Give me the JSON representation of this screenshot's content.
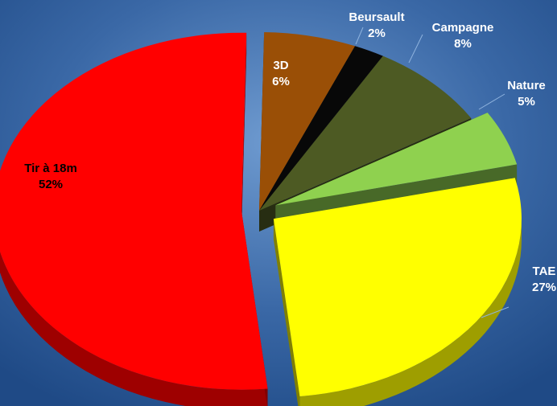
{
  "chart_data": {
    "type": "pie",
    "categories": [
      "3D",
      "Beursault",
      "Campagne",
      "Nature",
      "TAE",
      "Tir à 18m"
    ],
    "values": [
      6,
      2,
      8,
      5,
      27,
      52
    ],
    "value_labels": [
      "6%",
      "2%",
      "8%",
      "5%",
      "27%",
      "52%"
    ],
    "colors": [
      "#9a4f06",
      "#080808",
      "#4d5a23",
      "#8fd14f",
      "#ffff00",
      "#ff0000"
    ],
    "label_colors": [
      "#ffffff",
      "#ffffff",
      "#ffffff",
      "#ffffff",
      "#ffffff",
      "#000000"
    ],
    "exploded": true,
    "three_d": true,
    "title": "",
    "legend": "none"
  }
}
